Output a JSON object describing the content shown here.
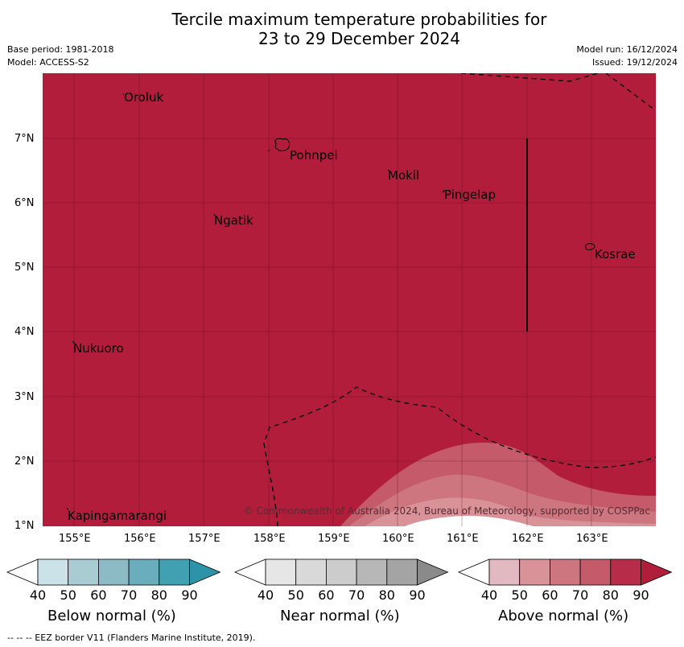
{
  "title_line1": "Tercile maximum temperature probabilities for",
  "title_line2": "23 to 29 December 2024",
  "meta": {
    "base_period": "Base period: 1981-2018",
    "model": "Model: ACCESS-S2",
    "model_run": "Model run: 16/12/2024",
    "issued": "Issued: 19/12/2024"
  },
  "map": {
    "copyright": "© Commonwealth of Australia 2024, Bureau of Meteorology, supported by COSPPac",
    "lon_ticks": [
      "155°E",
      "156°E",
      "157°E",
      "158°E",
      "159°E",
      "160°E",
      "161°E",
      "162°E",
      "163°E"
    ],
    "lat_ticks": [
      "7°N",
      "6°N",
      "5°N",
      "4°N",
      "3°N",
      "2°N",
      "1°N"
    ],
    "places": [
      "Oroluk",
      "Pohnpei",
      "Mokil",
      "Pingelap",
      "Ngatik",
      "Kosrae",
      "Nukuoro",
      "Kapingamarangi"
    ],
    "colors": {
      "dominant": "#b11d3a"
    }
  },
  "colorbars": [
    {
      "title": "Below normal (%)",
      "ticks": [
        "40",
        "50",
        "60",
        "70",
        "80",
        "90"
      ],
      "colors": [
        "#ffffff",
        "#cbe2e8",
        "#a9ccd3",
        "#8cbbc5",
        "#6aadbc",
        "#42a0b3",
        "#2d93a8"
      ]
    },
    {
      "title": "Near normal (%)",
      "ticks": [
        "40",
        "50",
        "60",
        "70",
        "80",
        "90"
      ],
      "colors": [
        "#ffffff",
        "#e6e6e6",
        "#d9d9d9",
        "#cccccc",
        "#b7b7b7",
        "#a4a4a4",
        "#8a8a8a"
      ]
    },
    {
      "title": "Above normal (%)",
      "ticks": [
        "40",
        "50",
        "60",
        "70",
        "80",
        "90"
      ],
      "colors": [
        "#ffffff",
        "#e2b9c0",
        "#d89298",
        "#cd7680",
        "#c45a6a",
        "#b72c48",
        "#b11d3a"
      ]
    }
  ],
  "footer": "--  --  -- EEZ border V11 (Flanders Marine Institute, 2019)."
}
